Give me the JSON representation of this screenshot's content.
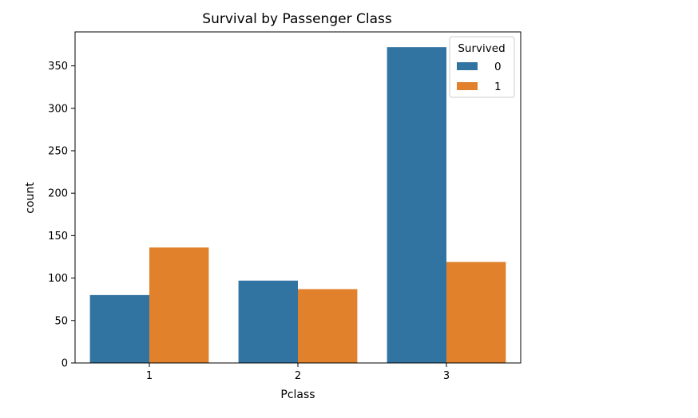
{
  "chart_data": {
    "type": "bar",
    "title": "Survival by Passenger Class",
    "xlabel": "Pclass",
    "ylabel": "count",
    "categories": [
      "1",
      "2",
      "3"
    ],
    "ylim": [
      0,
      390
    ],
    "yticks": [
      0,
      50,
      100,
      150,
      200,
      250,
      300,
      350
    ],
    "grid": false,
    "legend": {
      "title": "Survived",
      "placement": "top-right"
    },
    "series": [
      {
        "name": "0",
        "color": "#3274a1",
        "values": [
          80,
          97,
          372
        ]
      },
      {
        "name": "1",
        "color": "#e1812c",
        "values": [
          136,
          87,
          119
        ]
      }
    ]
  }
}
